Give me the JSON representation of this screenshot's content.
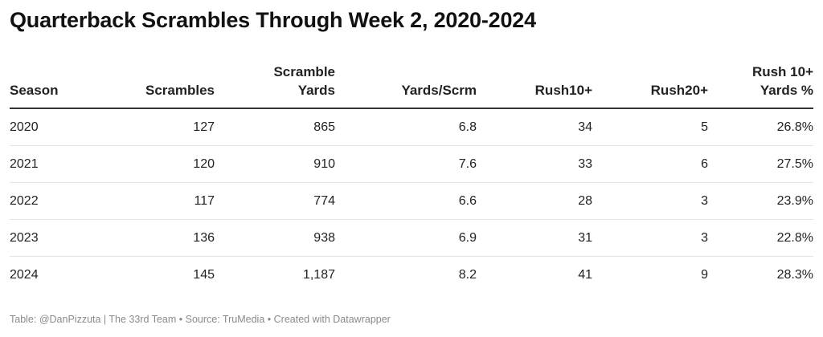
{
  "title": "Quarterback Scrambles Through Week 2, 2020-2024",
  "chart_data": {
    "type": "table",
    "columns": [
      [
        "Season"
      ],
      [
        "Scrambles"
      ],
      [
        "Scramble",
        "Yards"
      ],
      [
        "Yards/Scrm"
      ],
      [
        "Rush10+"
      ],
      [
        "Rush20+"
      ],
      [
        "Rush 10+",
        "Yards %"
      ]
    ],
    "rows": [
      [
        "2020",
        "127",
        "865",
        "6.8",
        "34",
        "5",
        "26.8%"
      ],
      [
        "2021",
        "120",
        "910",
        "7.6",
        "33",
        "6",
        "27.5%"
      ],
      [
        "2022",
        "117",
        "774",
        "6.6",
        "28",
        "3",
        "23.9%"
      ],
      [
        "2023",
        "136",
        "938",
        "6.9",
        "31",
        "3",
        "22.8%"
      ],
      [
        "2024",
        "145",
        "1,187",
        "8.2",
        "41",
        "9",
        "28.3%"
      ]
    ]
  },
  "footer": {
    "table_credit": "Table: @DanPizzuta | The 33rd Team",
    "source": "Source: TruMedia",
    "created_with": "Created with Datawrapper"
  }
}
